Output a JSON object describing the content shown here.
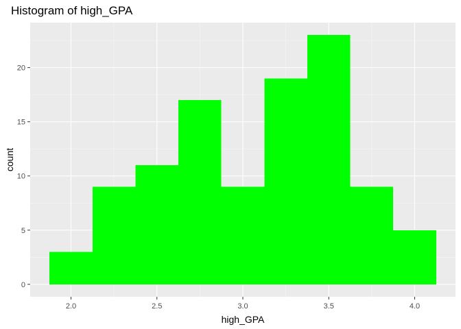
{
  "chart_data": {
    "type": "bar",
    "title": "Histogram of high_GPA",
    "xlabel": "high_GPA",
    "ylabel": "count",
    "bins": [
      {
        "x_start": 1.875,
        "x_end": 2.125,
        "count": 3
      },
      {
        "x_start": 2.125,
        "x_end": 2.375,
        "count": 9
      },
      {
        "x_start": 2.375,
        "x_end": 2.625,
        "count": 11
      },
      {
        "x_start": 2.625,
        "x_end": 2.875,
        "count": 17
      },
      {
        "x_start": 2.875,
        "x_end": 3.125,
        "count": 9
      },
      {
        "x_start": 3.125,
        "x_end": 3.375,
        "count": 19
      },
      {
        "x_start": 3.375,
        "x_end": 3.625,
        "count": 23
      },
      {
        "x_start": 3.625,
        "x_end": 3.875,
        "count": 9
      },
      {
        "x_start": 3.875,
        "x_end": 4.125,
        "count": 5
      }
    ],
    "x_ticks": [
      2.0,
      2.5,
      3.0,
      3.5,
      4.0
    ],
    "x_tick_labels": [
      "2.0",
      "2.5",
      "3.0",
      "3.5",
      "4.0"
    ],
    "y_ticks": [
      0,
      5,
      10,
      15,
      20
    ],
    "y_tick_labels": [
      "0",
      "5",
      "10",
      "15",
      "20"
    ],
    "xlim": [
      1.7625,
      4.2375
    ],
    "ylim": [
      -1.15,
      24.15
    ],
    "grid": true,
    "legend": "none",
    "colors": {
      "bar_fill": "#00ff00",
      "panel_background": "#ebebeb",
      "grid_major": "#ffffff",
      "grid_minor": "#f5f5f5"
    }
  }
}
